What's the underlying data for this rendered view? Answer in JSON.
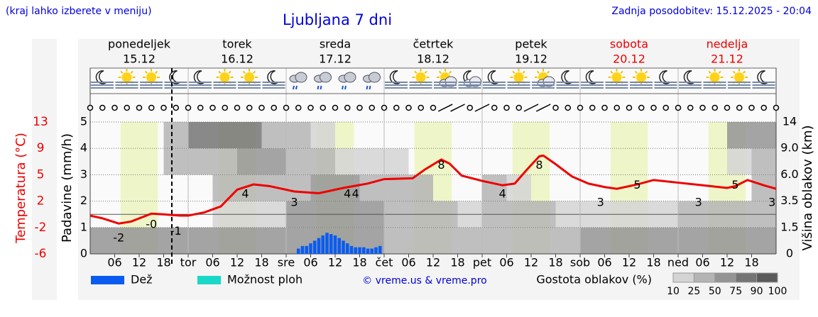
{
  "chart_data": {
    "type": "weather",
    "title": "Ljubljana 7 dni",
    "note": "(kraj lahko izberete v meniju)",
    "updated": "Zadnja posodobitev: 15.12.2025 - 20:04",
    "credit": "© vreme.us & vreme.pro",
    "days": [
      {
        "name": "ponedeljek",
        "date": "15.12",
        "color": "#000000"
      },
      {
        "name": "torek",
        "date": "16.12",
        "color": "#000000"
      },
      {
        "name": "sreda",
        "date": "17.12",
        "color": "#000000"
      },
      {
        "name": "četrtek",
        "date": "18.12",
        "color": "#000000"
      },
      {
        "name": "petek",
        "date": "19.12",
        "color": "#000000"
      },
      {
        "name": "sobota",
        "date": "20.12",
        "color": "#ee0000"
      },
      {
        "name": "nedelja",
        "date": "21.12",
        "color": "#ee0000"
      }
    ],
    "xlim": [
      0,
      168
    ],
    "xticks": [
      {
        "value": 6,
        "label": "06"
      },
      12,
      18,
      {
        "value": 24,
        "label": "tor"
      },
      {
        "value": 30,
        "label": "06"
      },
      {
        "value": 36,
        "label": "12"
      },
      {
        "value": 42,
        "label": "18"
      },
      {
        "value": 48,
        "label": "sre"
      },
      {
        "value": 54,
        "label": "06"
      },
      {
        "value": 60,
        "label": "12"
      },
      {
        "value": 66,
        "label": "18"
      },
      {
        "value": 72,
        "label": "čet"
      },
      {
        "value": 78,
        "label": "06"
      },
      {
        "value": 84,
        "label": "12"
      },
      {
        "value": 90,
        "label": "18"
      },
      {
        "value": 96,
        "label": "pet"
      },
      {
        "value": 102,
        "label": "06"
      },
      {
        "value": 108,
        "label": "12"
      },
      {
        "value": 114,
        "label": "18"
      },
      {
        "value": 120,
        "label": "sob"
      },
      {
        "value": 126,
        "label": "06"
      },
      {
        "value": 132,
        "label": "12"
      },
      {
        "value": 138,
        "label": "18"
      },
      {
        "value": 144,
        "label": "ned"
      },
      {
        "value": 150,
        "label": "06"
      },
      {
        "value": 156,
        "label": "12"
      },
      {
        "value": 162,
        "label": "18"
      }
    ],
    "ylabel": "Padavine (mm/h)",
    "ylim": [
      0,
      5
    ],
    "yticks": [
      0,
      1,
      2,
      3,
      4,
      5
    ],
    "temperature": {
      "name": "Temperatura (°C)",
      "color": "#ee0000",
      "yticks": [
        -6,
        -2,
        2,
        5,
        9,
        13
      ],
      "x": [
        0,
        3,
        7,
        10,
        15,
        18,
        22,
        24,
        28,
        32,
        36,
        40,
        44,
        50,
        56,
        62,
        68,
        72,
        79,
        82,
        86,
        88,
        91,
        96,
        101,
        104,
        107,
        110,
        111,
        114,
        118,
        122,
        126,
        129,
        134,
        138,
        144,
        150,
        156,
        158,
        161,
        165,
        168
      ],
      "values": [
        -0.2,
        -0.6,
        -1.4,
        -1.1,
        0.1,
        0,
        -0.2,
        -0.2,
        0.3,
        1.2,
        3.3,
        3.9,
        3.7,
        3.1,
        2.9,
        3.5,
        4.0,
        4.5,
        4.6,
        5.8,
        7.3,
        6.7,
        4.9,
        4.3,
        3.8,
        4.0,
        5.8,
        7.8,
        7.9,
        6.6,
        4.8,
        4.0,
        3.6,
        3.4,
        3.9,
        4.4,
        4.1,
        3.8,
        3.5,
        3.7,
        4.4,
        3.8,
        3.4
      ],
      "labels": [
        {
          "x": 7,
          "value": -2
        },
        {
          "x": 15,
          "value": 0,
          "label": "-0"
        },
        {
          "x": 21,
          "value": -1
        },
        {
          "x": 38,
          "value": 4
        },
        {
          "x": 50,
          "value": 3
        },
        {
          "x": 63,
          "value": 4
        },
        {
          "x": 65,
          "value": 4
        },
        {
          "x": 86,
          "value": 8
        },
        {
          "x": 101,
          "value": 4
        },
        {
          "x": 110,
          "value": 8
        },
        {
          "x": 125,
          "value": 3
        },
        {
          "x": 134,
          "value": 5
        },
        {
          "x": 149,
          "value": 3
        },
        {
          "x": 158,
          "value": 5
        },
        {
          "x": 167,
          "value": 3
        }
      ]
    },
    "precipitation": {
      "name": "Dež",
      "color": "#0a5cf0",
      "x": [
        51,
        52,
        53,
        54,
        55,
        56,
        57,
        58,
        59,
        60,
        61,
        62,
        63,
        64,
        65,
        66,
        67,
        68,
        69,
        70,
        71
      ],
      "values": [
        0.2,
        0.3,
        0.3,
        0.4,
        0.5,
        0.6,
        0.7,
        0.8,
        0.75,
        0.7,
        0.6,
        0.5,
        0.4,
        0.3,
        0.25,
        0.25,
        0.25,
        0.2,
        0.2,
        0.25,
        0.3
      ]
    },
    "showers": {
      "name": "Možnost ploh",
      "color": "#1ad8c8"
    },
    "y2label": "Višina oblakov (km)",
    "y2lim": [
      0,
      14
    ],
    "y2ticks": [
      0,
      1.5,
      3.5,
      {
        "value": 6,
        "label": "6.0"
      },
      {
        "value": 9,
        "label": "9.0"
      },
      14
    ],
    "clouds": {
      "title": "Gostota oblakov (%)",
      "x": [
        0,
        6,
        12,
        18,
        24,
        30,
        36,
        42,
        48,
        54,
        60,
        66,
        72,
        78,
        84,
        90,
        96,
        102,
        108,
        114,
        120,
        126,
        132,
        138,
        144,
        150,
        156,
        162,
        168
      ],
      "levels": [
        0,
        1.5,
        3.5,
        6,
        9,
        14
      ],
      "rows": [
        [
          60,
          60,
          60,
          60,
          60,
          60,
          50,
          50,
          60,
          70,
          70,
          70,
          40,
          40,
          30,
          30,
          40,
          40,
          30,
          40,
          50,
          60,
          60,
          60,
          60,
          60,
          70,
          70
        ],
        [
          0,
          0,
          0,
          0,
          0,
          10,
          20,
          10,
          60,
          70,
          70,
          60,
          40,
          40,
          25,
          20,
          30,
          40,
          25,
          10,
          10,
          10,
          10,
          10,
          25,
          30,
          30,
          40
        ],
        [
          0,
          0,
          0,
          0,
          0,
          25,
          40,
          30,
          40,
          50,
          60,
          40,
          30,
          25,
          0,
          0,
          25,
          10,
          0,
          0,
          0,
          0,
          0,
          0,
          0,
          0,
          0,
          25
        ],
        [
          0,
          0,
          0,
          25,
          40,
          40,
          50,
          50,
          40,
          25,
          10,
          10,
          10,
          0,
          0,
          0,
          0,
          0,
          0,
          0,
          0,
          0,
          0,
          0,
          0,
          0,
          10,
          40
        ],
        [
          0,
          0,
          0,
          40,
          75,
          75,
          75,
          40,
          25,
          10,
          0,
          0,
          0,
          0,
          0,
          0,
          0,
          0,
          0,
          0,
          0,
          0,
          0,
          0,
          0,
          0,
          50,
          60
        ]
      ],
      "scale": [
        10,
        25,
        50,
        75,
        90,
        100
      ],
      "colors": [
        "#d4d4d4",
        "#b4b4b4",
        "#949494",
        "#747474",
        "#5a5a5a"
      ]
    }
  }
}
